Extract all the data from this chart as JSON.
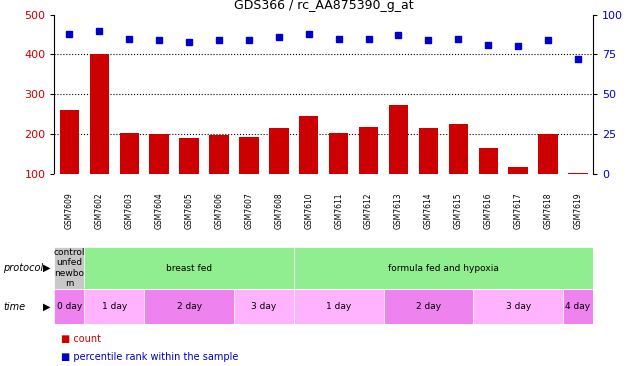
{
  "title": "GDS366 / rc_AA875390_g_at",
  "samples": [
    "GSM7609",
    "GSM7602",
    "GSM7603",
    "GSM7604",
    "GSM7605",
    "GSM7606",
    "GSM7607",
    "GSM7608",
    "GSM7610",
    "GSM7611",
    "GSM7612",
    "GSM7613",
    "GSM7614",
    "GSM7615",
    "GSM7616",
    "GSM7617",
    "GSM7618",
    "GSM7619"
  ],
  "counts": [
    260,
    400,
    203,
    200,
    190,
    197,
    193,
    215,
    245,
    203,
    218,
    273,
    214,
    225,
    165,
    118,
    200,
    103
  ],
  "percentiles": [
    88,
    90,
    85,
    84,
    83,
    84,
    84,
    86,
    88,
    85,
    85,
    87,
    84,
    85,
    81,
    80,
    84,
    72
  ],
  "ylim_left": [
    100,
    500
  ],
  "ylim_right": [
    0,
    100
  ],
  "yticks_left": [
    100,
    200,
    300,
    400,
    500
  ],
  "yticks_right": [
    0,
    25,
    50,
    75,
    100
  ],
  "bar_color": "#cc0000",
  "dot_color": "#0000cc",
  "chart_bg": "#ffffff",
  "label_bg": "#c8c8c8",
  "protocol_groups": [
    {
      "label": "control\nunfed\nnewbo\nrn",
      "color": "#c8c8c8",
      "start": 0,
      "end": 1
    },
    {
      "label": "breast fed",
      "color": "#90ee90",
      "start": 1,
      "end": 8
    },
    {
      "label": "formula fed and hypoxia",
      "color": "#90ee90",
      "start": 8,
      "end": 18
    }
  ],
  "time_groups": [
    {
      "label": "0 day",
      "color": "#ee82ee",
      "start": 0,
      "end": 1
    },
    {
      "label": "1 day",
      "color": "#ffb3ff",
      "start": 1,
      "end": 3
    },
    {
      "label": "2 day",
      "color": "#ee82ee",
      "start": 3,
      "end": 6
    },
    {
      "label": "3 day",
      "color": "#ffb3ff",
      "start": 6,
      "end": 8
    },
    {
      "label": "1 day",
      "color": "#ffb3ff",
      "start": 8,
      "end": 11
    },
    {
      "label": "2 day",
      "color": "#ee82ee",
      "start": 11,
      "end": 14
    },
    {
      "label": "3 day",
      "color": "#ffb3ff",
      "start": 14,
      "end": 17
    },
    {
      "label": "4 day",
      "color": "#ee82ee",
      "start": 17,
      "end": 18
    }
  ]
}
